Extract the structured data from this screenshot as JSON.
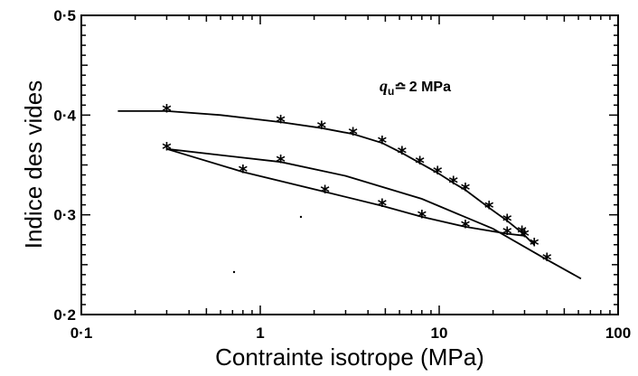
{
  "chart_data": {
    "type": "line",
    "title": "",
    "xlabel": "Contrainte isotrope (MPa)",
    "ylabel": "Indice des vides",
    "xscale": "log",
    "xlim": [
      0.1,
      100
    ],
    "ylim": [
      0.2,
      0.5
    ],
    "x_tick_labels": [
      "0·1",
      "1",
      "10",
      "100"
    ],
    "x_tick_values": [
      0.1,
      1,
      10,
      100
    ],
    "y_tick_labels": [
      "0·2",
      "0·3",
      "0·4",
      "0·5"
    ],
    "y_tick_values": [
      0.2,
      0.3,
      0.4,
      0.5
    ],
    "annotation": {
      "symbol": "q",
      "subscript": "u",
      "relation": "≏",
      "value": "2 MPa"
    },
    "grid": false,
    "legend": "none",
    "series": [
      {
        "values": [
          {
            "x": 0.16,
            "y": 0.404
          },
          {
            "x": 0.3,
            "y": 0.404,
            "marker": true
          },
          {
            "x": 0.6,
            "y": 0.4
          },
          {
            "x": 1.3,
            "y": 0.393,
            "marker": true
          },
          {
            "x": 2.2,
            "y": 0.387,
            "marker": true
          },
          {
            "x": 3.3,
            "y": 0.381,
            "marker": true
          },
          {
            "x": 4.8,
            "y": 0.372,
            "marker": true
          },
          {
            "x": 6.2,
            "y": 0.362,
            "marker": true
          },
          {
            "x": 7.8,
            "y": 0.352,
            "marker": true
          },
          {
            "x": 9.8,
            "y": 0.342,
            "marker": true
          },
          {
            "x": 12,
            "y": 0.332,
            "marker": true
          },
          {
            "x": 14,
            "y": 0.325,
            "marker": true
          },
          {
            "x": 19,
            "y": 0.307,
            "marker": true
          },
          {
            "x": 24,
            "y": 0.294,
            "marker": true
          },
          {
            "x": 29,
            "y": 0.282,
            "marker": true
          },
          {
            "x": 34,
            "y": 0.27,
            "marker": true
          }
        ]
      },
      {
        "values": [
          {
            "x": 0.3,
            "y": 0.366
          },
          {
            "x": 1.3,
            "y": 0.353,
            "marker": true
          },
          {
            "x": 3,
            "y": 0.339
          },
          {
            "x": 8,
            "y": 0.316
          },
          {
            "x": 20,
            "y": 0.286
          },
          {
            "x": 40,
            "y": 0.255,
            "marker": true
          },
          {
            "x": 62,
            "y": 0.236
          }
        ]
      },
      {
        "values": [
          {
            "x": 0.3,
            "y": 0.366,
            "marker": true
          },
          {
            "x": 0.8,
            "y": 0.343,
            "marker": true
          },
          {
            "x": 2.3,
            "y": 0.323,
            "marker": true
          },
          {
            "x": 4.8,
            "y": 0.309,
            "marker": true
          },
          {
            "x": 8,
            "y": 0.298,
            "marker": true
          },
          {
            "x": 14,
            "y": 0.288,
            "marker": true
          },
          {
            "x": 24,
            "y": 0.281,
            "marker": true
          },
          {
            "x": 30,
            "y": 0.279,
            "marker": true
          }
        ]
      }
    ]
  }
}
